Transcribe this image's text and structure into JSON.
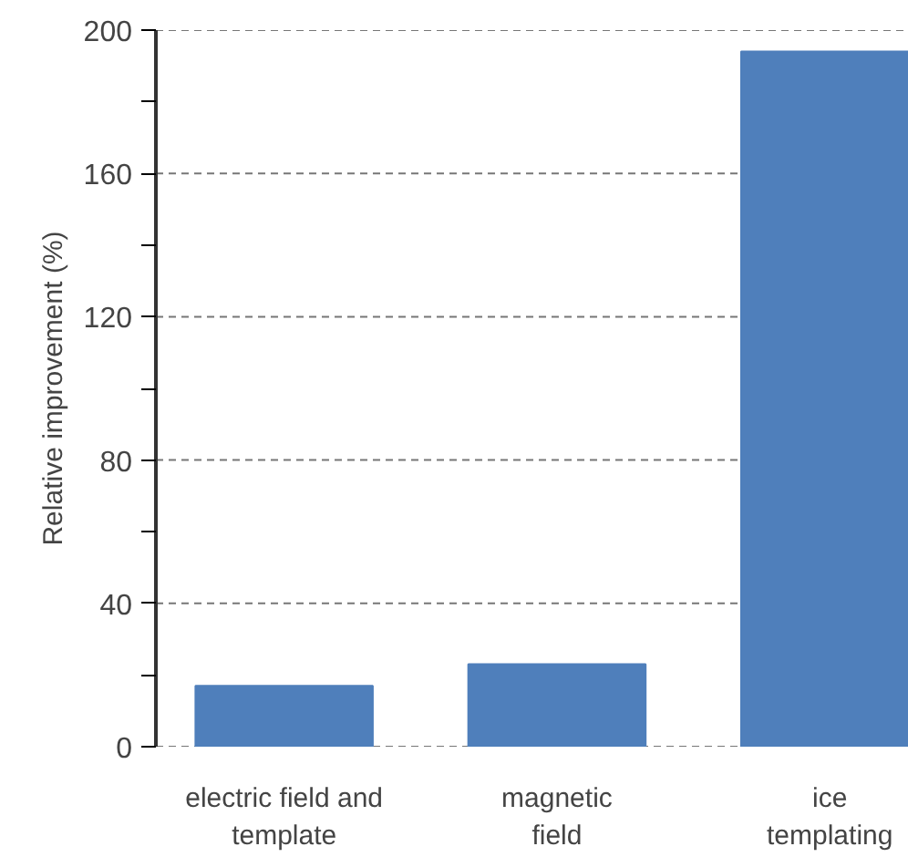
{
  "chart_data": {
    "type": "bar",
    "ylabel": "Relative improvement (%)",
    "categories": [
      "electric field and template",
      "magnetic field",
      "ice templating"
    ],
    "values": [
      17,
      23,
      194
    ],
    "color": "#4f7fbb",
    "ylim": [
      0,
      200
    ],
    "yticks": [
      0,
      {
        "value": 20,
        "label": null
      },
      40,
      {
        "value": 60,
        "label": null
      },
      80,
      {
        "value": 100,
        "label": null
      },
      120,
      {
        "value": 140,
        "label": null
      },
      160,
      {
        "value": 180,
        "label": null
      },
      200
    ],
    "grid": "y"
  }
}
